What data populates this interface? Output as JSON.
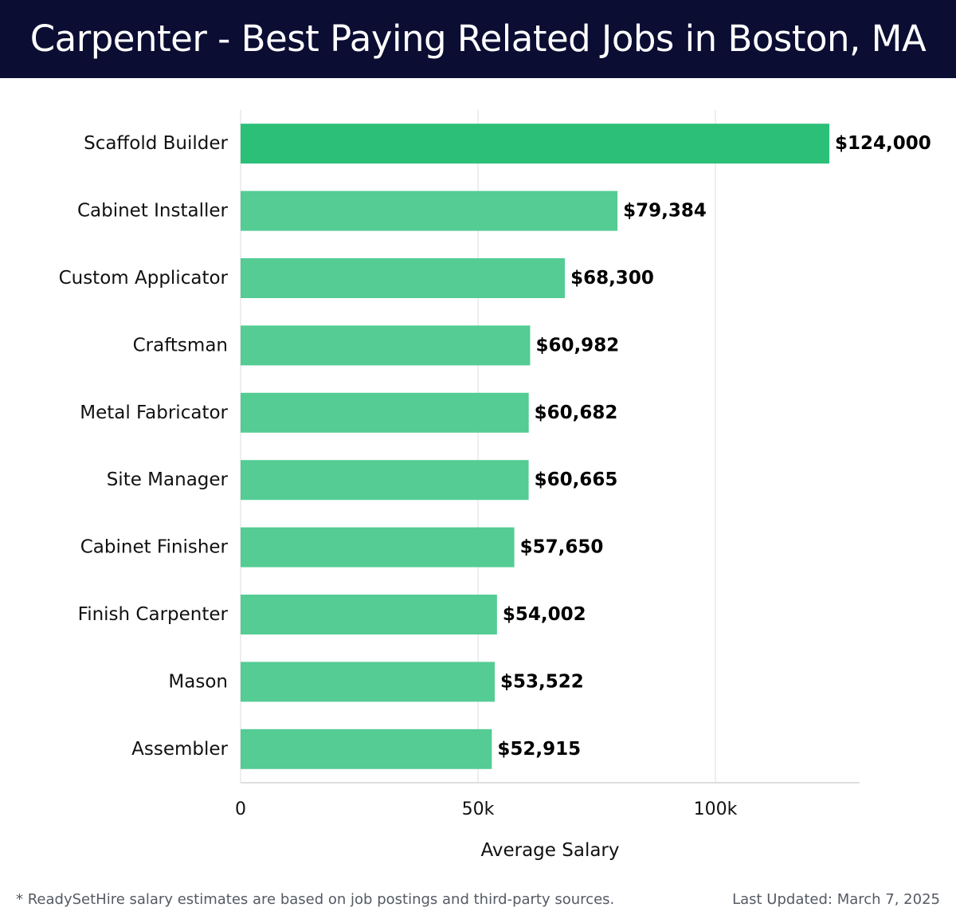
{
  "header": {
    "title": "Carpenter - Best Paying Related Jobs in Boston, MA"
  },
  "colors": {
    "header_bg": "#0b0d33",
    "bar_top": "#2bbf77",
    "bar": "#54cc94",
    "grid": "#e3e3e3",
    "axis": "#cccccc",
    "text": "#111111",
    "footer_text": "#555a63"
  },
  "chart_data": {
    "type": "bar",
    "orientation": "horizontal",
    "categories": [
      "Scaffold Builder",
      "Cabinet Installer",
      "Custom Applicator",
      "Craftsman",
      "Metal Fabricator",
      "Site Manager",
      "Cabinet Finisher",
      "Finish Carpenter",
      "Mason",
      "Assembler"
    ],
    "values": [
      124000,
      79384,
      68300,
      60982,
      60682,
      60665,
      57650,
      54002,
      53522,
      52915
    ],
    "value_labels": [
      "$124,000",
      "$79,384",
      "$68,300",
      "$60,982",
      "$60,682",
      "$60,665",
      "$57,650",
      "$54,002",
      "$53,522",
      "$52,915"
    ],
    "xlabel": "Average Salary",
    "ylabel": "",
    "xlim": [
      0,
      130000
    ],
    "xticks": [
      0,
      50000,
      100000
    ],
    "xtick_labels": [
      "0",
      "50k",
      "100k"
    ],
    "grid": true,
    "legend": "none"
  },
  "footer": {
    "note": "* ReadySetHire salary estimates are based on job postings and third-party sources.",
    "updated": "Last Updated: March 7, 2025"
  }
}
